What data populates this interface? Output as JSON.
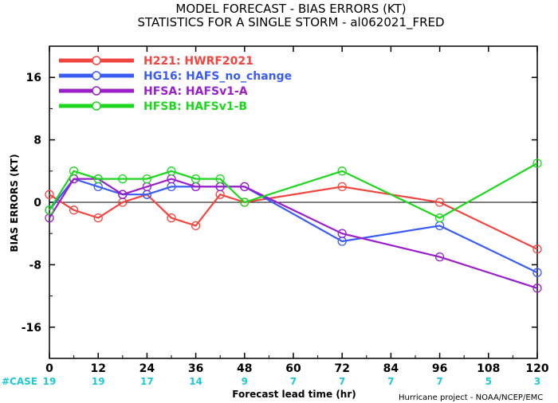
{
  "colors": {
    "H221": "#f2453f",
    "HG16": "#3a5cf2",
    "HFSA": "#9a1fc9",
    "HFSB": "#1ed61e",
    "case": "#1ec8d6"
  },
  "credit": "Hurricane project - NOAA/NCEP/EMC",
  "chart_data": {
    "type": "line",
    "title": "MODEL FORECAST - BIAS ERRORS (KT)",
    "subtitle": "STATISTICS FOR A SINGLE STORM - al062021_FRED",
    "xlabel": "Forecast lead time (hr)",
    "ylabel": "BIAS ERRORS (KT)",
    "xlim": [
      0,
      120
    ],
    "ylim": [
      -20,
      20
    ],
    "xticks": [
      "0",
      "12",
      "24",
      "36",
      "48",
      "60",
      "72",
      "84",
      "96",
      "108",
      "120"
    ],
    "yticks": [
      "16",
      "8",
      "0",
      "-8",
      "-16"
    ],
    "grid": false,
    "legend_position": "top-left",
    "case_label": "#CASE",
    "case_counts": [
      {
        "x": 0,
        "n": "19"
      },
      {
        "x": 12,
        "n": "19"
      },
      {
        "x": 24,
        "n": "17"
      },
      {
        "x": 36,
        "n": "14"
      },
      {
        "x": 48,
        "n": "9"
      },
      {
        "x": 60,
        "n": "7"
      },
      {
        "x": 72,
        "n": "7"
      },
      {
        "x": 84,
        "n": "7"
      },
      {
        "x": 96,
        "n": "7"
      },
      {
        "x": 108,
        "n": "5"
      },
      {
        "x": 120,
        "n": "3"
      }
    ],
    "series": [
      {
        "key": "H221",
        "name": "H221:  HWRF2021",
        "x": [
          0,
          6,
          12,
          18,
          24,
          30,
          36,
          42,
          48,
          72,
          96,
          120
        ],
        "y": [
          1,
          -1,
          -2,
          0,
          1,
          -2,
          -3,
          1,
          0,
          2,
          0,
          -6
        ]
      },
      {
        "key": "HG16",
        "name": "HG16:  HAFS_no_change",
        "x": [
          0,
          6,
          12,
          18,
          24,
          30,
          36,
          42,
          48,
          72,
          96,
          120
        ],
        "y": [
          -1,
          3,
          2,
          1,
          1,
          2,
          2,
          2,
          2,
          -5,
          -3,
          -9
        ]
      },
      {
        "key": "HFSA",
        "name": "HFSA:  HAFSv1-A",
        "x": [
          0,
          6,
          12,
          18,
          24,
          30,
          36,
          42,
          48,
          72,
          96,
          120
        ],
        "y": [
          -2,
          3,
          3,
          1,
          2,
          3,
          2,
          2,
          2,
          -4,
          -7,
          -11
        ]
      },
      {
        "key": "HFSB",
        "name": "HFSB:  HAFSv1-B",
        "x": [
          0,
          6,
          12,
          18,
          24,
          30,
          36,
          42,
          48,
          72,
          96,
          120
        ],
        "y": [
          -1,
          4,
          3,
          3,
          3,
          4,
          3,
          3,
          0,
          4,
          -2,
          5
        ]
      }
    ]
  }
}
